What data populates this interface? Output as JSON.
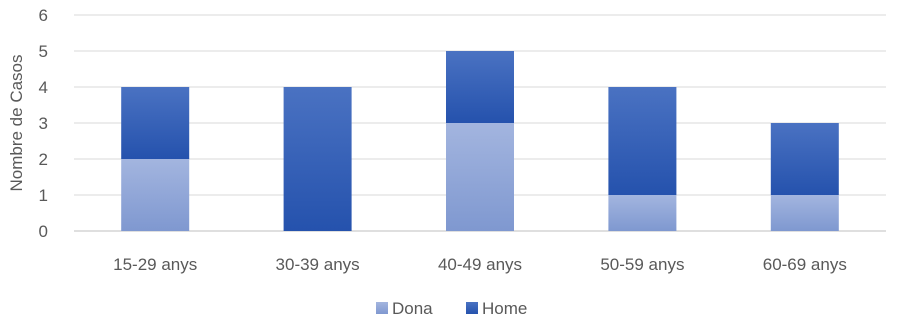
{
  "chart_data": {
    "type": "bar",
    "stacked": true,
    "categories": [
      "15-29 anys",
      "30-39 anys",
      "40-49 anys",
      "50-59 anys",
      "60-69 anys"
    ],
    "series": [
      {
        "name": "Dona",
        "values": [
          2,
          0,
          3,
          1,
          1
        ],
        "color": "#8ea4d6"
      },
      {
        "name": "Home",
        "values": [
          2,
          4,
          2,
          3,
          2
        ],
        "color": "#2f5db8"
      }
    ],
    "title": "",
    "xlabel": "",
    "ylabel": "Nombre de Casos",
    "ylim": [
      0,
      6
    ],
    "yticks": [
      0,
      1,
      2,
      3,
      4,
      5,
      6
    ],
    "grid": true,
    "legend": "bottom"
  }
}
